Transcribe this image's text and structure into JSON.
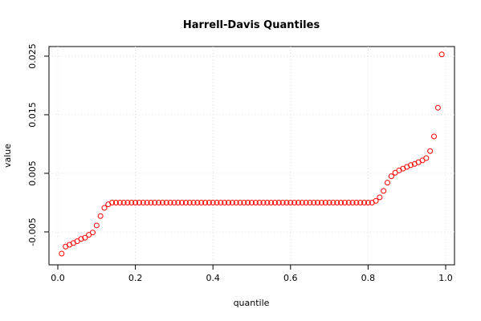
{
  "chart_data": {
    "type": "scatter",
    "title": "Harrell-Davis Quantiles",
    "x_label": "quantile",
    "y_label": "value",
    "x": [
      0.01,
      0.02,
      0.03,
      0.04,
      0.05,
      0.06,
      0.07,
      0.08,
      0.09,
      0.1,
      0.11,
      0.12,
      0.13,
      0.14,
      0.15,
      0.16,
      0.17,
      0.18,
      0.19,
      0.2,
      0.21,
      0.22,
      0.23,
      0.24,
      0.25,
      0.26,
      0.27,
      0.28,
      0.29,
      0.3,
      0.31,
      0.32,
      0.33,
      0.34,
      0.35,
      0.36,
      0.37,
      0.38,
      0.39,
      0.4,
      0.41,
      0.42,
      0.43,
      0.44,
      0.45,
      0.46,
      0.47,
      0.48,
      0.49,
      0.5,
      0.51,
      0.52,
      0.53,
      0.54,
      0.55,
      0.56,
      0.57,
      0.58,
      0.59,
      0.6,
      0.61,
      0.62,
      0.63,
      0.64,
      0.65,
      0.66,
      0.67,
      0.68,
      0.69,
      0.7,
      0.71,
      0.72,
      0.73,
      0.74,
      0.75,
      0.76,
      0.77,
      0.78,
      0.79,
      0.8,
      0.81,
      0.82,
      0.83,
      0.84,
      0.85,
      0.86,
      0.87,
      0.88,
      0.89,
      0.9,
      0.91,
      0.92,
      0.93,
      0.94,
      0.95,
      0.96,
      0.97,
      0.98,
      0.99
    ],
    "values": [
      -0.0087,
      -0.0075,
      -0.0072,
      -0.0069,
      -0.0066,
      -0.0062,
      -0.006,
      -0.0055,
      -0.0051,
      -0.0039,
      -0.0023,
      -0.0009,
      -0.0003,
      0,
      0,
      0,
      0,
      0,
      0,
      0,
      0,
      0,
      0,
      0,
      0,
      0,
      0,
      0,
      0,
      0,
      0,
      0,
      0,
      0,
      0,
      0,
      0,
      0,
      0,
      0,
      0,
      0,
      0,
      0,
      0,
      0,
      0,
      0,
      0,
      0,
      0,
      0,
      0,
      0,
      0,
      0,
      0,
      0,
      0,
      0,
      0,
      0,
      0,
      0,
      0,
      0,
      0,
      0,
      0,
      0,
      0,
      0,
      0,
      0,
      0,
      0,
      0,
      0,
      0,
      0,
      0,
      0.0003,
      0.0009,
      0.002,
      0.0034,
      0.0045,
      0.0051,
      0.0055,
      0.0058,
      0.0061,
      0.0064,
      0.0066,
      0.0069,
      0.0072,
      0.0076,
      0.0088,
      0.0113,
      0.0162,
      0.0253
    ],
    "color": "#ff0000",
    "xlim": [
      -0.0228,
      1.0228
    ],
    "xticks": [
      {
        "value": 0,
        "label": "0.0"
      },
      0.2,
      0.4,
      0.6,
      0.8,
      {
        "value": 1,
        "label": "1.0"
      }
    ],
    "ylim": [
      -0.01062,
      0.02664
    ],
    "yticks": [
      -0.005,
      0.005,
      0.015,
      0.025
    ],
    "grid": true
  }
}
